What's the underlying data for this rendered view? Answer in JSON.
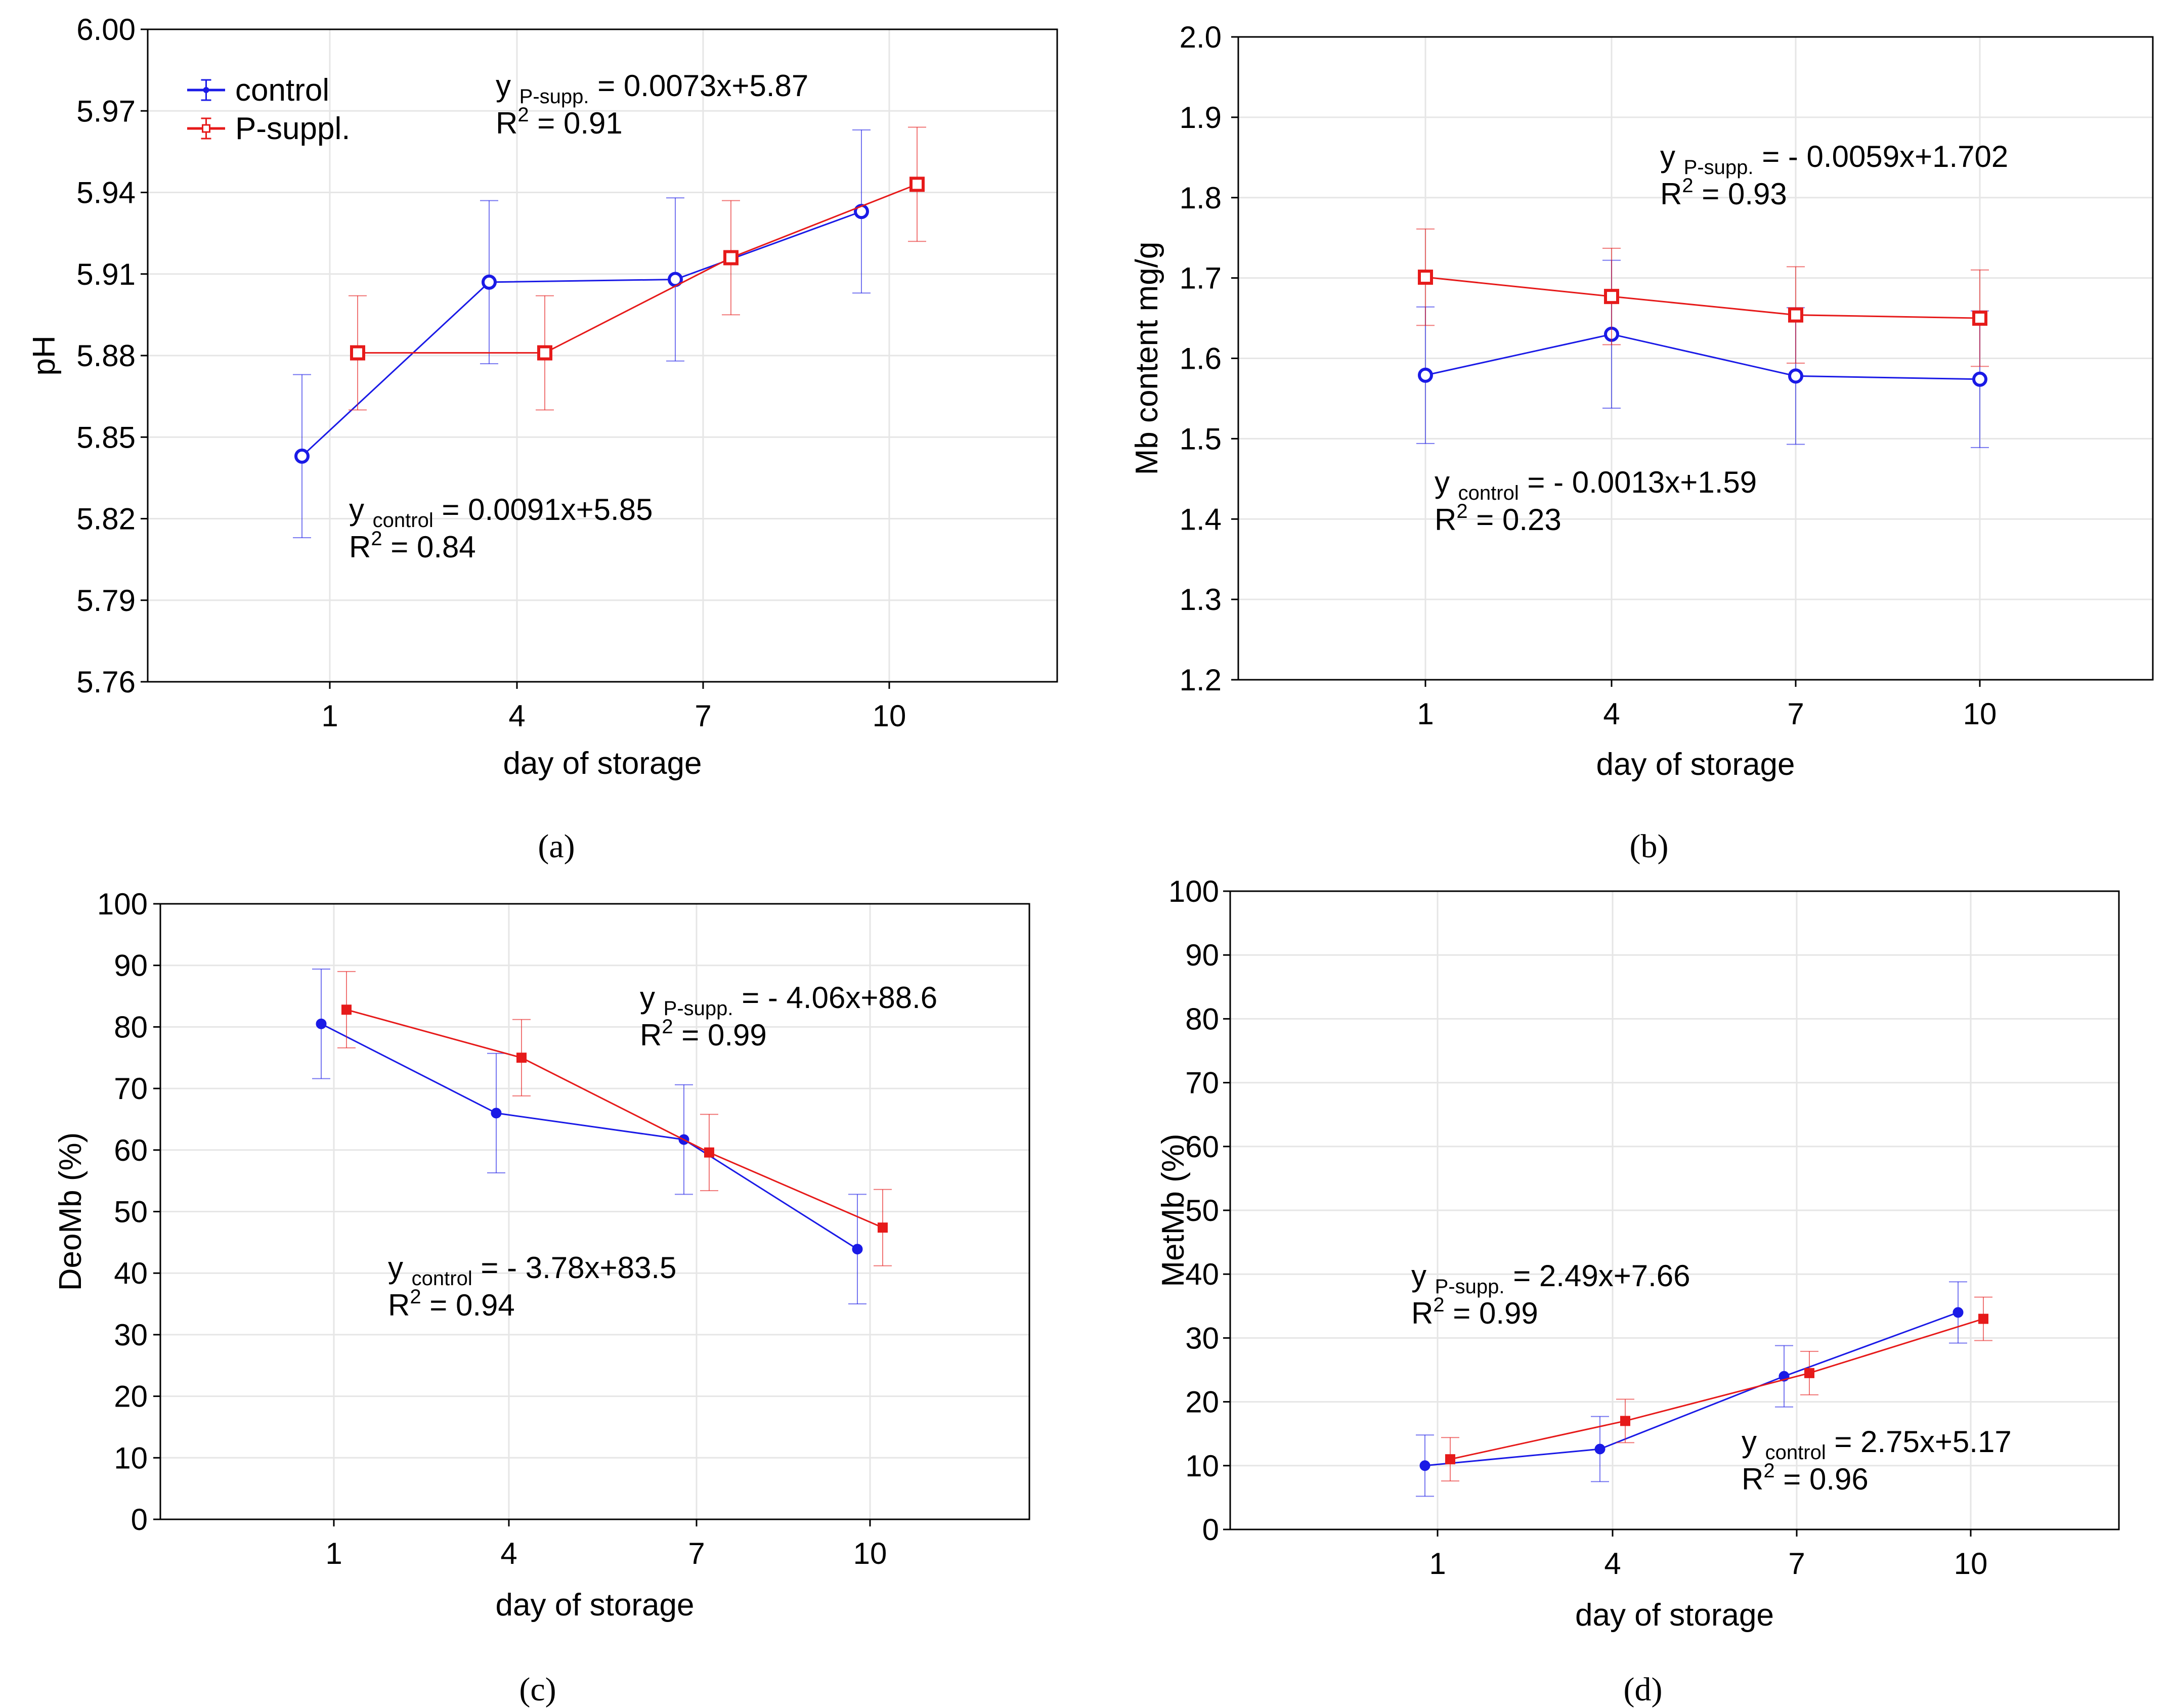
{
  "colors": {
    "control": "#1a1ae6",
    "p_suppl": "#e61a1a",
    "grid": "#e6e6e6",
    "axis": "#000000"
  },
  "chart_data": [
    {
      "type": "line",
      "panel": "(a)",
      "xlabel": "day of storage",
      "ylabel": "pH",
      "categories": [
        "1",
        "4",
        "7",
        "10"
      ],
      "ylim": [
        5.76,
        6.0
      ],
      "yticks": [
        "5.76",
        "5.79",
        "5.82",
        "5.85",
        "5.88",
        "5.91",
        "5.94",
        "5.97",
        "6.00"
      ],
      "grid": true,
      "legend": {
        "position": "top-left",
        "entries": [
          "control",
          "P-suppl."
        ]
      },
      "series": [
        {
          "name": "control",
          "values": [
            5.843,
            5.907,
            5.908,
            5.933
          ],
          "err": [
            0.03,
            0.03,
            0.03,
            0.03
          ]
        },
        {
          "name": "P-suppl.",
          "values": [
            5.881,
            5.881,
            5.916,
            5.943
          ],
          "err": [
            0.021,
            0.021,
            0.021,
            0.021
          ]
        }
      ],
      "equations": [
        {
          "y": "y",
          "sub": "P-supp.",
          "rhs": "= 0.0073x+5.87",
          "r2_label": "R",
          "r2_exp": "2",
          "r2_value": "= 0.91"
        },
        {
          "y": "y",
          "sub": "control",
          "rhs": "= 0.0091x+5.85",
          "r2_label": "R",
          "r2_exp": "2",
          "r2_value": "= 0.84"
        }
      ]
    },
    {
      "type": "line",
      "panel": "(b)",
      "xlabel": "day of storage",
      "ylabel": "Mb content mg/g",
      "categories": [
        "1",
        "4",
        "7",
        "10"
      ],
      "ylim": [
        1.2,
        2.0
      ],
      "yticks": [
        "1.2",
        "1.3",
        "1.4",
        "1.5",
        "1.6",
        "1.7",
        "1.8",
        "1.9",
        "2.0"
      ],
      "grid": true,
      "series": [
        {
          "name": "control",
          "values": [
            1.579,
            1.63,
            1.578,
            1.574
          ],
          "err": [
            0.085,
            0.092,
            0.085,
            0.085
          ]
        },
        {
          "name": "P-suppl.",
          "values": [
            1.701,
            1.677,
            1.654,
            1.65
          ],
          "err": [
            0.06,
            0.06,
            0.06,
            0.06
          ]
        }
      ],
      "equations": [
        {
          "y": "y",
          "sub": "P-supp.",
          "rhs": "= - 0.0059x+1.702",
          "r2_label": "R",
          "r2_exp": "2",
          "r2_value": "= 0.93"
        },
        {
          "y": "y",
          "sub": "control",
          "rhs": "= - 0.0013x+1.59",
          "r2_label": "R",
          "r2_exp": "2",
          "r2_value": "= 0.23"
        }
      ]
    },
    {
      "type": "line",
      "panel": "(c)",
      "xlabel": "day of storage",
      "ylabel": "DeoMb (%)",
      "categories": [
        "1",
        "4",
        "7",
        "10"
      ],
      "ylim": [
        0,
        100
      ],
      "yticks": [
        "0",
        "10",
        "20",
        "30",
        "40",
        "50",
        "60",
        "70",
        "80",
        "90",
        "100"
      ],
      "grid": true,
      "series": [
        {
          "name": "control",
          "values": [
            80.5,
            66.0,
            61.7,
            43.9
          ],
          "err": [
            8.9,
            9.7,
            8.9,
            8.9
          ]
        },
        {
          "name": "P-suppl.",
          "values": [
            82.8,
            75.0,
            59.6,
            47.4
          ],
          "err": [
            6.2,
            6.2,
            6.2,
            6.2
          ]
        }
      ],
      "equations": [
        {
          "y": "y",
          "sub": "P-supp.",
          "rhs": "= - 4.06x+88.6",
          "r2_label": "R",
          "r2_exp": "2",
          "r2_value": "= 0.99"
        },
        {
          "y": "y",
          "sub": "control",
          "rhs": "= - 3.78x+83.5",
          "r2_label": "R",
          "r2_exp": "2",
          "r2_value": "= 0.94"
        }
      ]
    },
    {
      "type": "line",
      "panel": "(d)",
      "xlabel": "day of storage",
      "ylabel": "MetMb (%)",
      "categories": [
        "1",
        "4",
        "7",
        "10"
      ],
      "ylim": [
        0,
        100
      ],
      "yticks": [
        "0",
        "10",
        "20",
        "30",
        "40",
        "50",
        "60",
        "70",
        "80",
        "90",
        "100"
      ],
      "grid": true,
      "series": [
        {
          "name": "control",
          "values": [
            10.0,
            12.6,
            24.0,
            34.0
          ],
          "err": [
            4.8,
            5.1,
            4.8,
            4.8
          ]
        },
        {
          "name": "P-suppl.",
          "values": [
            11.0,
            17.0,
            24.5,
            33.0
          ],
          "err": [
            3.4,
            3.4,
            3.4,
            3.4
          ]
        }
      ],
      "equations": [
        {
          "y": "y",
          "sub": "P-supp.",
          "rhs": "= 2.49x+7.66",
          "r2_label": "R",
          "r2_exp": "2",
          "r2_value": "= 0.99"
        },
        {
          "y": "y",
          "sub": "control",
          "rhs": "= 2.75x+5.17",
          "r2_label": "R",
          "r2_exp": "2",
          "r2_value": "= 0.96"
        }
      ]
    }
  ]
}
